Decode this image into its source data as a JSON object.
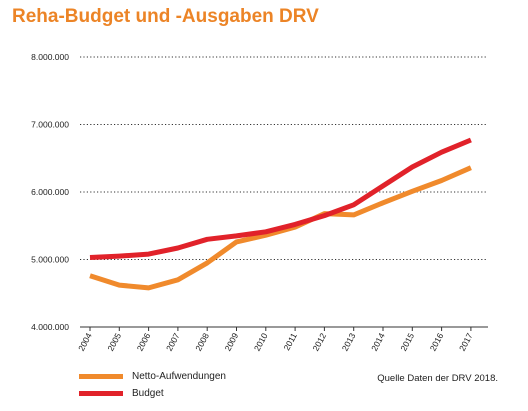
{
  "colors": {
    "orange": "#f08a2c",
    "red": "#e1222a",
    "title": "#ec8426",
    "grid": "#333333"
  },
  "chart_data": {
    "type": "line",
    "title": "Reha-Budget und -Ausgaben DRV",
    "source": "Quelle Daten der DRV 2018.",
    "x": [
      2004,
      2005,
      2006,
      2007,
      2008,
      2009,
      2010,
      2011,
      2012,
      2013,
      2014,
      2015,
      2016,
      2017
    ],
    "x_tick_labels": [
      "2004",
      "2005",
      "2006",
      "2007",
      "2008",
      "2009",
      "2010",
      "2011",
      "2012",
      "2013",
      "2014",
      "2015",
      "2016",
      "2017"
    ],
    "ylim": [
      4000000,
      8000000
    ],
    "y_ticks": [
      4000000,
      5000000,
      6000000,
      7000000,
      8000000
    ],
    "y_tick_labels": [
      "4.000.000",
      "5.000.000",
      "6.000.000",
      "7.000.000",
      "8.000.000"
    ],
    "grid": "horizontal-dotted",
    "legend_position": "bottom-left",
    "series": [
      {
        "name": "Netto-Aufwendungen",
        "color": "#f08a2c",
        "values": [
          4760000,
          4620000,
          4580000,
          4700000,
          4950000,
          5260000,
          5360000,
          5480000,
          5680000,
          5660000,
          5840000,
          6010000,
          6170000,
          6360000
        ]
      },
      {
        "name": "Budget",
        "color": "#e1222a",
        "values": [
          5030000,
          5050000,
          5080000,
          5170000,
          5300000,
          5350000,
          5410000,
          5520000,
          5650000,
          5810000,
          6090000,
          6370000,
          6590000,
          6770000
        ]
      }
    ]
  }
}
